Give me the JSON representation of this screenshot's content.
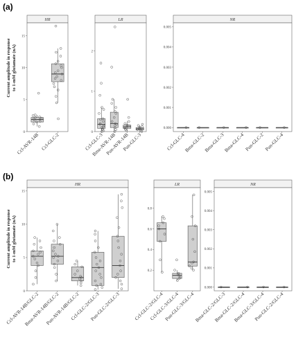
{
  "chart_data": [
    {
      "type": "box",
      "panel_label": "(a)",
      "ylabel": "Current amplitude in response\nto 1-mM glutamate (nA)",
      "facets": [
        {
          "strip": "HR",
          "ylim": [
            0,
            17
          ],
          "yticks": [
            0,
            5,
            10,
            15
          ],
          "ytick_labels": [
            "0",
            "5",
            "10",
            "15"
          ],
          "categories": [
            "Ccl-AVR-14B",
            "Ccl-GLC-2"
          ],
          "boxes": [
            {
              "q1": 1.5,
              "median": 1.9,
              "q3": 2.2,
              "whislo": 0.8,
              "whishi": 2.6,
              "points": [
                0.8,
                1.2,
                1.5,
                1.6,
                1.8,
                1.9,
                2.0,
                2.1,
                2.2,
                2.3,
                2.5,
                2.6,
                6.0
              ]
            },
            {
              "q1": 7.8,
              "median": 9.0,
              "q3": 10.6,
              "whislo": 4.5,
              "whishi": 13.0,
              "points": [
                2.0,
                4.5,
                5.5,
                6.5,
                7.0,
                7.5,
                8.0,
                8.3,
                8.6,
                9.0,
                9.2,
                9.5,
                10.0,
                10.3,
                10.6,
                11.0,
                11.8,
                12.4,
                13.0,
                16.5
              ]
            }
          ]
        },
        {
          "strip": "LR",
          "ylim": [
            0,
            2.7
          ],
          "yticks": [
            0,
            1,
            2
          ],
          "ytick_labels": [
            "0",
            "1",
            "2"
          ],
          "categories": [
            "Ccl-GLC-3",
            "Bma-AVR-14B",
            "Pun-AVR-14B",
            "Pun-GLC-3"
          ],
          "boxes": [
            {
              "q1": 0.08,
              "median": 0.18,
              "q3": 0.32,
              "whislo": 0.0,
              "whishi": 0.6,
              "points": [
                0.0,
                0.02,
                0.05,
                0.08,
                0.1,
                0.12,
                0.15,
                0.18,
                0.2,
                0.25,
                0.3,
                0.32,
                0.45,
                0.55,
                0.6,
                0.9,
                1.2,
                1.7
              ]
            },
            {
              "q1": 0.1,
              "median": 0.2,
              "q3": 0.48,
              "whislo": 0.0,
              "whishi": 0.8,
              "points": [
                0.0,
                0.05,
                0.1,
                0.15,
                0.18,
                0.2,
                0.25,
                0.35,
                0.45,
                0.5,
                0.6,
                0.7,
                0.8,
                1.6,
                2.6
              ]
            },
            {
              "q1": 0.08,
              "median": 0.12,
              "q3": 0.16,
              "whislo": 0.02,
              "whishi": 0.25,
              "points": [
                0.02,
                0.05,
                0.08,
                0.1,
                0.12,
                0.14,
                0.16,
                0.2,
                0.25,
                0.35,
                0.8
              ]
            },
            {
              "q1": 0.04,
              "median": 0.07,
              "q3": 0.1,
              "whislo": 0.0,
              "whishi": 0.15,
              "points": [
                0.0,
                0.03,
                0.05,
                0.07,
                0.08,
                0.1,
                0.12,
                0.15,
                0.18
              ]
            }
          ]
        },
        {
          "strip": "NR",
          "ylim": [
            -0.0002,
            0.0052
          ],
          "yticks": [
            0,
            0.001,
            0.002,
            0.003,
            0.004,
            0.005
          ],
          "ytick_labels": [
            "0.000",
            "0.001",
            "0.002",
            "0.003",
            "0.004",
            "0.005"
          ],
          "categories": [
            "Ccl-GLC-4",
            "Bma-GLC-2",
            "Bma-GLC-3",
            "Bma-GLC-4",
            "Pun-GLC-2",
            "Pun-GLC-4"
          ],
          "boxes": [
            {
              "q1": 0,
              "median": 0,
              "q3": 0,
              "whislo": 0,
              "whishi": 0,
              "points": [
                0
              ]
            },
            {
              "q1": 0,
              "median": 0,
              "q3": 0,
              "whislo": 0,
              "whishi": 0,
              "points": [
                0
              ]
            },
            {
              "q1": 0,
              "median": 0,
              "q3": 0,
              "whislo": 0,
              "whishi": 0,
              "points": [
                0
              ]
            },
            {
              "q1": 0,
              "median": 0,
              "q3": 0,
              "whislo": 0,
              "whishi": 0,
              "points": [
                0
              ]
            },
            {
              "q1": 0,
              "median": 0,
              "q3": 0,
              "whislo": 0,
              "whishi": 0,
              "points": [
                0
              ]
            },
            {
              "q1": 0,
              "median": 0,
              "q3": 0,
              "whislo": 0,
              "whishi": 0,
              "points": [
                0
              ]
            }
          ]
        }
      ]
    },
    {
      "type": "box",
      "panel_label": "(b)",
      "ylabel": "Current amplitude in response\nto 1-mM glutamate (nA)",
      "facets": [
        {
          "strip": "HR",
          "ylim": [
            0,
            15.5
          ],
          "yticks": [
            0,
            5,
            10,
            15
          ],
          "ytick_labels": [
            "0",
            "5",
            "10",
            "15"
          ],
          "categories": [
            "Ccl-AVR-14B/GLC-2",
            "Bma-AVR-14B/GLC-2",
            "Pun-AVR-14B/GLC-2",
            "Ccl-GLC-2/GLC-3",
            "Pun-GLC-2/GLC-3"
          ],
          "boxes": [
            {
              "q1": 3.8,
              "median": 5.2,
              "q3": 6.0,
              "whislo": 1.0,
              "whishi": 8.0,
              "points": [
                1.0,
                2.0,
                3.0,
                3.8,
                4.2,
                4.8,
                5.2,
                5.5,
                5.8,
                6.0,
                6.5,
                7.0,
                7.5,
                8.0
              ]
            },
            {
              "q1": 4.0,
              "median": 5.2,
              "q3": 7.0,
              "whislo": 1.5,
              "whishi": 10.0,
              "points": [
                1.5,
                2.5,
                3.5,
                4.0,
                4.5,
                5.0,
                5.2,
                5.5,
                6.0,
                6.5,
                7.0,
                7.5,
                8.0,
                9.0,
                10.0
              ]
            },
            {
              "q1": 1.5,
              "median": 2.0,
              "q3": 3.6,
              "whislo": 0.8,
              "whishi": 4.5,
              "points": [
                0.8,
                1.2,
                1.5,
                1.8,
                2.0,
                2.2,
                2.5,
                3.0,
                3.6,
                4.0,
                4.5
              ]
            },
            {
              "q1": 0.8,
              "median": 3.5,
              "q3": 5.8,
              "whislo": 0.2,
              "whishi": 9.0,
              "points": [
                0.2,
                0.5,
                0.8,
                1.0,
                1.5,
                2.0,
                2.5,
                3.0,
                3.5,
                4.0,
                4.5,
                5.0,
                5.8,
                6.5,
                7.5,
                8.5,
                9.0
              ]
            },
            {
              "q1": 2.0,
              "median": 3.8,
              "q3": 8.2,
              "whislo": 0.3,
              "whishi": 14.5,
              "points": [
                0.3,
                1.0,
                1.5,
                2.0,
                2.5,
                3.0,
                3.8,
                4.5,
                5.5,
                6.5,
                7.5,
                8.2,
                9.5,
                11.0,
                12.5,
                13.5,
                14.5
              ]
            }
          ]
        },
        {
          "strip": "LR",
          "ylim": [
            0,
            1.0
          ],
          "yticks": [
            0.2,
            0.4,
            0.6,
            0.8
          ],
          "ytick_labels": [
            "0.2",
            "0.4",
            "0.6",
            "0.8"
          ],
          "categories": [
            "Ccl-GLC-2/GLC-4",
            "Ccl-GLC-3/GLC-4",
            "Pun-GLC-3/GLC-4"
          ],
          "boxes": [
            {
              "q1": 0.48,
              "median": 0.6,
              "q3": 0.66,
              "whislo": 0.18,
              "whishi": 0.72,
              "points": [
                0.18,
                0.3,
                0.48,
                0.55,
                0.6,
                0.63,
                0.66,
                0.7,
                0.72
              ]
            },
            {
              "q1": 0.12,
              "median": 0.15,
              "q3": 0.17,
              "whislo": 0.1,
              "whishi": 0.2,
              "points": [
                0.1,
                0.12,
                0.13,
                0.15,
                0.16,
                0.17,
                0.2,
                0.3
              ]
            },
            {
              "q1": 0.24,
              "median": 0.28,
              "q3": 0.63,
              "whislo": 0.2,
              "whishi": 0.93,
              "points": [
                0.2,
                0.22,
                0.24,
                0.27,
                0.28,
                0.38,
                0.5,
                0.63,
                0.72,
                0.93
              ]
            }
          ]
        },
        {
          "strip": "NR",
          "ylim": [
            -0.0002,
            0.0052
          ],
          "yticks": [
            0,
            0.001,
            0.002,
            0.003,
            0.004,
            0.005
          ],
          "ytick_labels": [
            "0.000",
            "0.001",
            "0.002",
            "0.003",
            "0.004",
            "0.005"
          ],
          "categories": [
            "Bma-GLC-2/GLC-3",
            "Bma-GLC-2/GLC-4",
            "Bma-GLC-3/GLC-4",
            "Pun-GLC-2/GLC-4"
          ],
          "boxes": [
            {
              "q1": 0,
              "median": 0,
              "q3": 0,
              "whislo": 0,
              "whishi": 0,
              "points": [
                0
              ]
            },
            {
              "q1": 0,
              "median": 0,
              "q3": 0,
              "whislo": 0,
              "whishi": 0,
              "points": [
                0
              ]
            },
            {
              "q1": 0,
              "median": 0,
              "q3": 0,
              "whislo": 0,
              "whishi": 0,
              "points": [
                0
              ]
            },
            {
              "q1": 0,
              "median": 0,
              "q3": 0,
              "whislo": 0,
              "whishi": 0,
              "points": [
                0
              ]
            }
          ]
        }
      ]
    }
  ],
  "colors": {
    "box_fill": "#cfcfcf",
    "box_stroke": "#555555",
    "point_stroke": "#555555",
    "strip_fill": "#f2f2f2",
    "frame": "#666666"
  }
}
